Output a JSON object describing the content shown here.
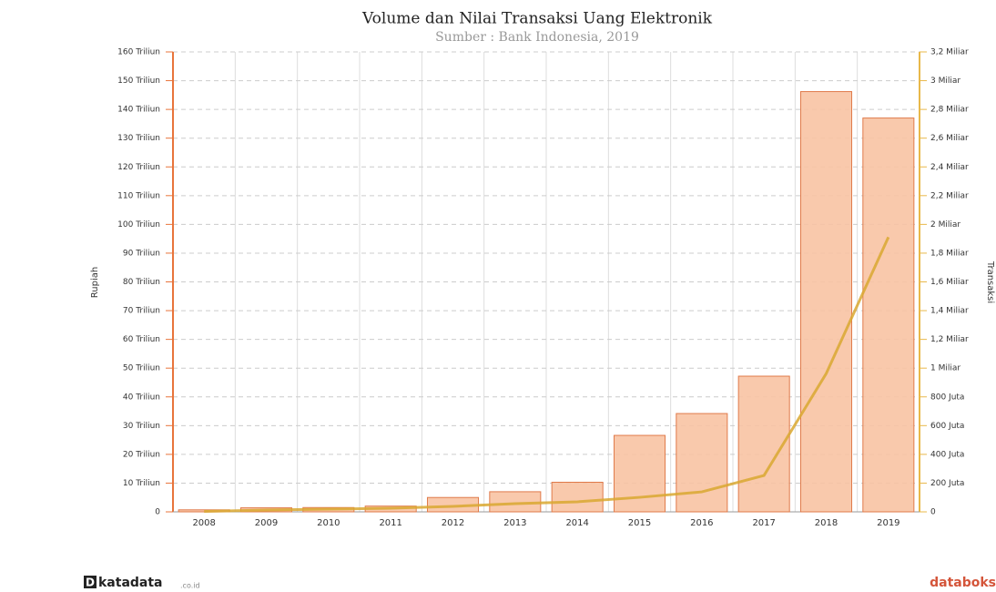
{
  "chart_data": {
    "type": "bar-line",
    "title": "Volume dan Nilai Transaksi Uang Elektronik",
    "subtitle": "Sumber : Bank Indonesia, 2019",
    "y_label": "Rupiah",
    "y2_label": "Transaksi",
    "categories": [
      "2008",
      "2009",
      "2010",
      "2011",
      "2012",
      "2013",
      "2014",
      "2015",
      "2016",
      "2017",
      "2018",
      "2019"
    ],
    "series": [
      {
        "kind": "bar",
        "color": "#f8c3a3",
        "edge": "#e07a4a",
        "values": [
          0.7,
          1.4,
          1.5,
          2,
          5,
          7,
          10.3,
          26.6,
          34.2,
          47.2,
          146.2,
          137
        ]
      },
      {
        "kind": "line",
        "axis": "y2",
        "color": "#d9a830",
        "values": [
          3,
          13,
          19,
          25,
          38,
          57,
          70,
          101,
          139,
          253,
          962,
          1911
        ]
      }
    ],
    "ylim": [
      0,
      160
    ],
    "yticks": [
      0,
      {
        "value": 10,
        "label": "10 Triliun"
      },
      {
        "value": 20,
        "label": "20 Triliun"
      },
      {
        "value": 30,
        "label": "30 Triliun"
      },
      {
        "value": 40,
        "label": "40 Triliun"
      },
      {
        "value": 50,
        "label": "50 Triliun"
      },
      {
        "value": 60,
        "label": "60 Triliun"
      },
      {
        "value": 70,
        "label": "70 Triliun"
      },
      {
        "value": 80,
        "label": "80 Triliun"
      },
      {
        "value": 90,
        "label": "90 Triliun"
      },
      {
        "value": 100,
        "label": "100 Triliun"
      },
      {
        "value": 110,
        "label": "110 Triliun"
      },
      {
        "value": 120,
        "label": "120 Triliun"
      },
      {
        "value": 130,
        "label": "130 Triliun"
      },
      {
        "value": 140,
        "label": "140 Triliun"
      },
      {
        "value": 150,
        "label": "150 Triliun"
      },
      {
        "value": 160,
        "label": "160 Triliun"
      }
    ],
    "y2lim": [
      0,
      3200
    ],
    "y2ticks": [
      0,
      {
        "value": 200,
        "label": "200 Juta"
      },
      {
        "value": 400,
        "label": "400 Juta"
      },
      {
        "value": 600,
        "label": "600 Juta"
      },
      {
        "value": 800,
        "label": "800 Juta"
      },
      {
        "value": 1000,
        "label": "1 Miliar"
      },
      {
        "value": 1200,
        "label": "1,2 Miliar"
      },
      {
        "value": 1400,
        "label": "1,4 Miliar"
      },
      {
        "value": 1600,
        "label": "1,6 Miliar"
      },
      {
        "value": 1800,
        "label": "1,8 Miliar"
      },
      {
        "value": 2000,
        "label": "2 Miliar"
      },
      {
        "value": 2200,
        "label": "2,2 Miliar"
      },
      {
        "value": 2400,
        "label": "2,4 Miliar"
      },
      {
        "value": 2600,
        "label": "2,6 Miliar"
      },
      {
        "value": 2800,
        "label": "2,8 Miliar"
      },
      {
        "value": 3000,
        "label": "3 Miliar"
      },
      {
        "value": 3200,
        "label": "3,2 Miliar"
      }
    ],
    "y_axis_color": "#e8743b",
    "y2_axis_color": "#e8b84a",
    "grid": true,
    "branding": {
      "left_mark": "D",
      "left": "katadata",
      "left_suffix": ".co.id",
      "right": "databoks"
    }
  }
}
